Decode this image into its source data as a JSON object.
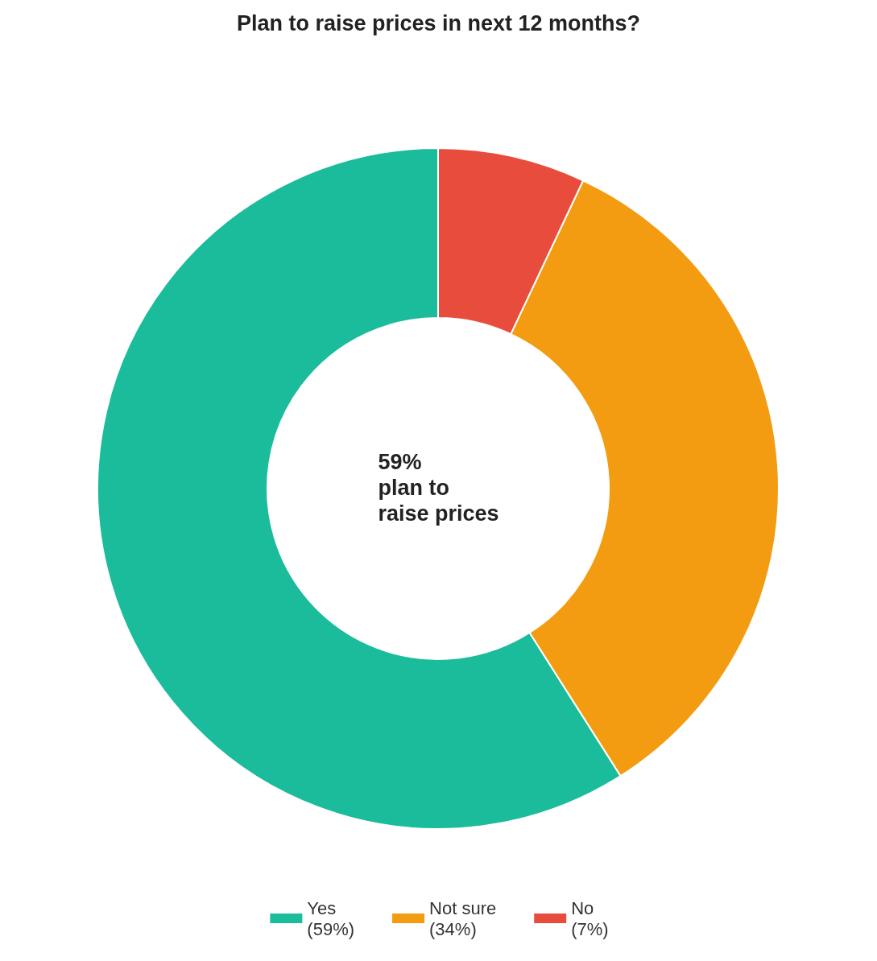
{
  "chart_data": {
    "type": "donut",
    "title": "Plan to raise prices in next 12 months?",
    "categories": [
      "Yes",
      "Not sure",
      "No"
    ],
    "values": [
      59,
      34,
      7
    ],
    "colors": [
      "#1abc9c",
      "#f39c12",
      "#e74c3c"
    ],
    "value_labels": [
      "(59%)",
      "(34%)",
      "(7%)"
    ],
    "annotations": [
      "59%\nplan to\nraise prices"
    ],
    "legend": "bottom"
  }
}
